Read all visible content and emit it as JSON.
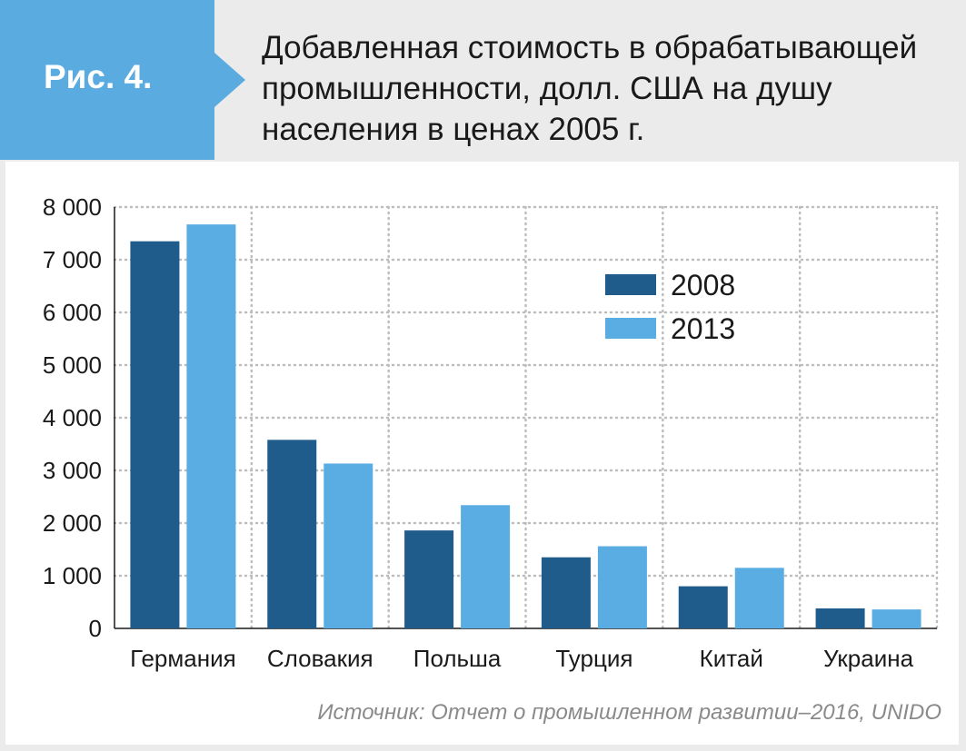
{
  "figure_label": "Рис. 4.",
  "title": "Добавленная стоимость в обрабатывающей промышленности, долл. США на душу населения в ценах 2005 г.",
  "source": "Источник: Отчет о промышленном развитии–2016, UNIDO",
  "colors": {
    "badge": "#5aabe0",
    "series_2008": "#1f5c8c",
    "series_2013": "#5aade2",
    "grid": "#bdbdbd",
    "text": "#1a1a1a",
    "source_text": "#8a8a8a"
  },
  "chart_data": {
    "type": "bar",
    "title": "Добавленная стоимость в обрабатывающей промышленности, долл. США на душу населения в ценах 2005 г.",
    "xlabel": "",
    "ylabel": "",
    "categories": [
      "Германия",
      "Словакия",
      "Польша",
      "Турция",
      "Китай",
      "Украина"
    ],
    "series": [
      {
        "name": "2008",
        "values": [
          7350,
          3580,
          1860,
          1350,
          800,
          380
        ]
      },
      {
        "name": "2013",
        "values": [
          7670,
          3130,
          2340,
          1560,
          1150,
          360
        ]
      }
    ],
    "ylim": [
      0,
      8000
    ],
    "yticks": [
      0,
      1000,
      2000,
      3000,
      4000,
      5000,
      6000,
      7000,
      8000
    ],
    "ytick_labels": [
      "0",
      "1 000",
      "2 000",
      "3 000",
      "4 000",
      "5 000",
      "6 000",
      "7 000",
      "8 000"
    ],
    "grid": true,
    "legend_position": "top-right"
  }
}
